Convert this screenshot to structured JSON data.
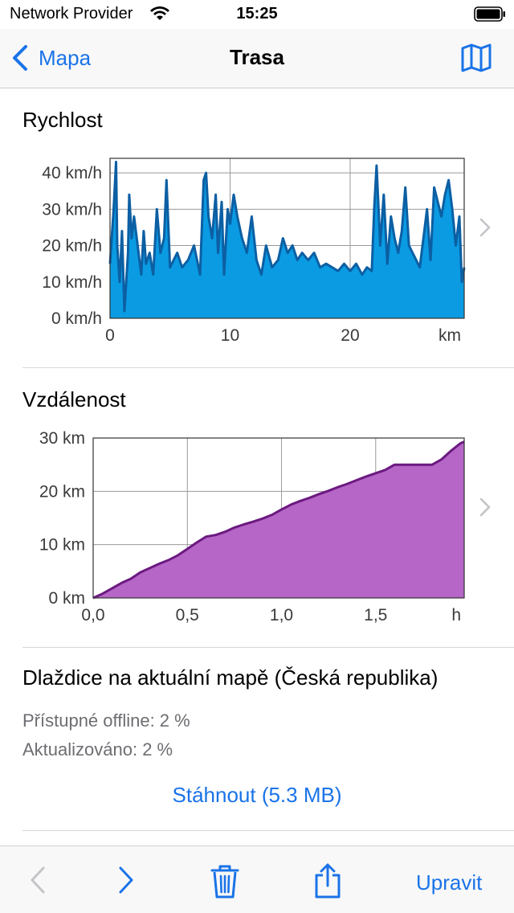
{
  "status": {
    "carrier": "Network Provider",
    "time": "15:25"
  },
  "nav": {
    "back_label": "Mapa",
    "title": "Trasa"
  },
  "speed_section": {
    "title": "Rychlost"
  },
  "distance_section": {
    "title": "Vzdálenost"
  },
  "tiles": {
    "title": "Dlaždice na aktuální mapě (Česká republika)",
    "offline": "Přístupné offline: 2 %",
    "updated": "Aktualizováno: 2 %",
    "download": "Stáhnout (5.3 MB)"
  },
  "toolbar": {
    "edit_label": "Upravit"
  },
  "colors": {
    "accent": "#1a73e8",
    "speed_fill": "#0a9be3",
    "speed_line": "#0c5fa3",
    "distance_fill": "#b566c6",
    "distance_line": "#6b1a80"
  },
  "chart_data": [
    {
      "type": "area",
      "title": "Rychlost",
      "xlabel": "km",
      "x_ticks": [
        "0",
        "10",
        "20"
      ],
      "x_tick_values": [
        0,
        10,
        20
      ],
      "y_ticks": [
        "0 km/h",
        "10 km/h",
        "20 km/h",
        "30 km/h",
        "40 km/h"
      ],
      "y_tick_values": [
        0,
        10,
        20,
        30,
        40
      ],
      "xlim": [
        0,
        29.5
      ],
      "ylim": [
        0,
        44
      ],
      "grid": true,
      "x": [
        0,
        0.3,
        0.5,
        0.6,
        0.8,
        1.0,
        1.2,
        1.5,
        1.6,
        1.8,
        2.0,
        2.3,
        2.6,
        2.8,
        3.0,
        3.3,
        3.6,
        3.9,
        4.2,
        4.5,
        4.7,
        5.0,
        5.3,
        5.6,
        6.0,
        6.5,
        7.0,
        7.5,
        7.8,
        8.0,
        8.2,
        8.5,
        8.8,
        9.0,
        9.3,
        9.5,
        9.8,
        10.0,
        10.3,
        10.6,
        11.0,
        11.4,
        11.8,
        12.2,
        12.6,
        13.0,
        13.5,
        14.0,
        14.4,
        14.8,
        15.2,
        15.6,
        16.0,
        16.5,
        17.0,
        17.5,
        18.0,
        18.5,
        19.0,
        19.5,
        20.0,
        20.5,
        21.0,
        21.4,
        21.8,
        22.0,
        22.2,
        22.5,
        22.8,
        23.1,
        23.4,
        23.7,
        24.0,
        24.3,
        24.6,
        24.9,
        25.2,
        25.5,
        25.8,
        26.1,
        26.4,
        26.7,
        27.0,
        27.3,
        27.6,
        27.9,
        28.2,
        28.5,
        28.8,
        29.1,
        29.3,
        29.5
      ],
      "values": [
        15,
        30,
        43,
        20,
        10,
        24,
        2,
        18,
        34,
        22,
        28,
        20,
        12,
        24,
        15,
        18,
        12,
        30,
        18,
        22,
        38,
        14,
        16,
        18,
        14,
        16,
        20,
        12,
        38,
        40,
        28,
        22,
        34,
        18,
        32,
        12,
        30,
        26,
        34,
        28,
        22,
        18,
        28,
        16,
        12,
        20,
        14,
        16,
        22,
        18,
        20,
        16,
        18,
        16,
        18,
        14,
        15,
        14,
        13,
        15,
        13,
        15,
        12,
        14,
        13,
        30,
        42,
        20,
        34,
        15,
        28,
        22,
        18,
        24,
        36,
        20,
        18,
        16,
        14,
        22,
        30,
        16,
        36,
        32,
        28,
        34,
        38,
        30,
        20,
        28,
        10,
        14
      ]
    },
    {
      "type": "area",
      "title": "Vzdálenost",
      "xlabel": "h",
      "x_ticks": [
        "0,0",
        "0,5",
        "1,0",
        "1,5"
      ],
      "x_tick_values": [
        0,
        0.5,
        1.0,
        1.5
      ],
      "y_ticks": [
        "0 km",
        "10 km",
        "20 km",
        "30 km"
      ],
      "y_tick_values": [
        0,
        10,
        20,
        30
      ],
      "xlim": [
        0,
        1.97
      ],
      "ylim": [
        0,
        30
      ],
      "grid": true,
      "x": [
        0,
        0.05,
        0.1,
        0.15,
        0.2,
        0.25,
        0.3,
        0.35,
        0.4,
        0.45,
        0.5,
        0.55,
        0.6,
        0.65,
        0.7,
        0.75,
        0.8,
        0.85,
        0.9,
        0.95,
        1.0,
        1.05,
        1.1,
        1.15,
        1.2,
        1.25,
        1.3,
        1.35,
        1.4,
        1.45,
        1.5,
        1.55,
        1.6,
        1.65,
        1.7,
        1.75,
        1.8,
        1.85,
        1.9,
        1.95,
        1.97
      ],
      "values": [
        0,
        0.8,
        1.8,
        2.8,
        3.6,
        4.8,
        5.6,
        6.4,
        7.1,
        8.0,
        9.2,
        10.4,
        11.5,
        11.8,
        12.4,
        13.2,
        13.8,
        14.3,
        14.9,
        15.6,
        16.6,
        17.5,
        18.2,
        18.8,
        19.5,
        20.1,
        20.8,
        21.4,
        22.1,
        22.8,
        23.4,
        24.0,
        25.0,
        25.0,
        25.0,
        25.0,
        25.0,
        26.0,
        27.6,
        29.0,
        29.3
      ]
    }
  ]
}
